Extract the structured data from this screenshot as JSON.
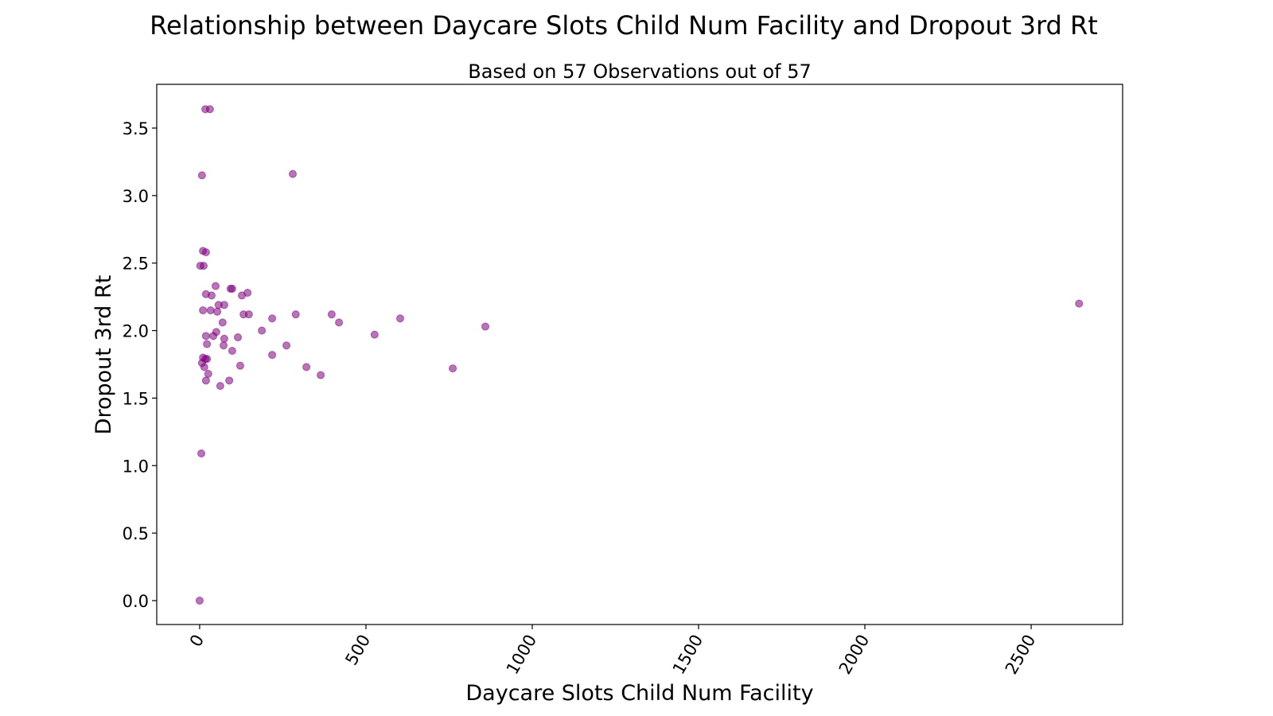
{
  "chart_data": {
    "type": "scatter",
    "title": "Relationship between Daycare Slots Child Num Facility and Dropout 3rd Rt",
    "subtitle": "Based on 57 Observations out of 57",
    "x_label": "Daycare Slots Child Num Facility",
    "y_label": "Dropout 3rd Rt",
    "color": "#800080",
    "alpha": 0.55,
    "xlim": [
      -129,
      2775
    ],
    "ylim": [
      -0.177,
      3.824
    ],
    "xticks": [
      0,
      500,
      1000,
      1500,
      2000,
      2500
    ],
    "yticks": [
      {
        "value": 0,
        "label": "0.0"
      },
      0.5,
      {
        "value": 1,
        "label": "1.0"
      },
      1.5,
      {
        "value": 2,
        "label": "2.0"
      },
      2.5,
      {
        "value": 3,
        "label": "3.0"
      },
      3.5
    ],
    "x": [
      17,
      31,
      7,
      280,
      10,
      19,
      2,
      12,
      48,
      93,
      98,
      144,
      19,
      36,
      127,
      2644,
      57,
      74,
      10,
      33,
      53,
      132,
      148,
      289,
      397,
      218,
      603,
      69,
      419,
      859,
      187,
      50,
      526,
      19,
      41,
      115,
      74,
      22,
      72,
      261,
      98,
      218,
      10,
      17,
      22,
      7,
      14,
      122,
      321,
      761,
      26,
      364,
      19,
      89,
      62,
      5,
      0
    ],
    "y": [
      3.64,
      3.64,
      3.15,
      3.16,
      2.59,
      2.58,
      2.48,
      2.48,
      2.33,
      2.31,
      2.31,
      2.28,
      2.27,
      2.26,
      2.26,
      2.2,
      2.19,
      2.19,
      2.15,
      2.15,
      2.14,
      2.12,
      2.12,
      2.12,
      2.12,
      2.09,
      2.09,
      2.06,
      2.06,
      2.03,
      2.0,
      1.99,
      1.97,
      1.96,
      1.96,
      1.95,
      1.94,
      1.9,
      1.89,
      1.89,
      1.85,
      1.82,
      1.8,
      1.79,
      1.79,
      1.76,
      1.73,
      1.74,
      1.73,
      1.72,
      1.68,
      1.67,
      1.63,
      1.63,
      1.59,
      1.09,
      0.0
    ]
  }
}
